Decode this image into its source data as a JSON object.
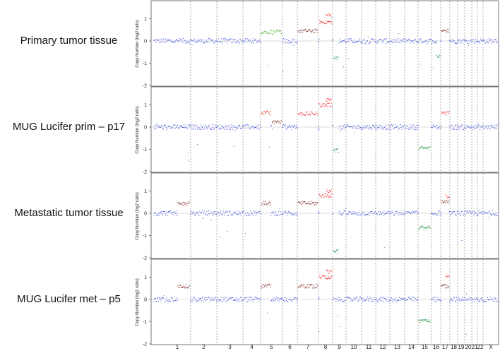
{
  "chart_data": {
    "type": "scatter",
    "y_axis_label": "Copy Number (log2 ratio)",
    "ylim": [
      -2,
      2
    ],
    "y_ticks": [
      "1",
      "0",
      "-1",
      "-2"
    ],
    "chromosomes": [
      "1",
      "2",
      "3",
      "4",
      "5",
      "6",
      "7",
      "8",
      "9",
      "10",
      "11",
      "12",
      "13",
      "14",
      "15",
      "16",
      "17",
      "18",
      "19",
      "20",
      "21",
      "22",
      "X"
    ],
    "x_tick_labels": [
      "1",
      "2",
      "3",
      "4",
      "5",
      "6",
      "7",
      "8",
      "9",
      "10",
      "11",
      "12",
      "13",
      "14",
      "15",
      "16",
      "17",
      "18",
      "19",
      "20",
      "21",
      "22",
      "X"
    ],
    "colors": {
      "normal": "#2233dd",
      "gain": "#ee2222",
      "gain_dark": "#7a1a1a",
      "low_gain": "#44aa22",
      "loss": "#118833",
      "reference": "#999999"
    },
    "panels": [
      {
        "label": "Primary tumor tissue",
        "segments": [
          {
            "chr": "5",
            "value": 0.4,
            "class": "low_gain"
          },
          {
            "chr": "7",
            "value": 0.45,
            "class": "gain_dark"
          },
          {
            "chr": "8",
            "value": 0.85,
            "class": "gain"
          },
          {
            "chr": "8q",
            "value": 1.15,
            "class": "gain"
          },
          {
            "chr": "9p",
            "value": -0.75,
            "class": "loss"
          },
          {
            "chr": "16q",
            "value": -0.7,
            "class": "loss"
          },
          {
            "chr": "17",
            "value": 0.45,
            "class": "gain_dark"
          }
        ]
      },
      {
        "label": "MUG Lucifer prim – p17",
        "segments": [
          {
            "chr": "5p",
            "value": 0.65,
            "class": "gain"
          },
          {
            "chr": "5q",
            "value": 0.25,
            "class": "gain_dark"
          },
          {
            "chr": "7",
            "value": 0.6,
            "class": "gain"
          },
          {
            "chr": "8",
            "value": 1.0,
            "class": "gain"
          },
          {
            "chr": "8q",
            "value": 1.25,
            "class": "gain"
          },
          {
            "chr": "9p",
            "value": -1.05,
            "class": "loss"
          },
          {
            "chr": "15",
            "value": -0.95,
            "class": "loss"
          },
          {
            "chr": "17",
            "value": 0.65,
            "class": "gain"
          }
        ]
      },
      {
        "label": "Metastatic tumor tissue",
        "segments": [
          {
            "chr": "1q",
            "value": 0.45,
            "class": "gain_dark"
          },
          {
            "chr": "5p",
            "value": 0.45,
            "class": "gain_dark"
          },
          {
            "chr": "7",
            "value": 0.45,
            "class": "gain_dark"
          },
          {
            "chr": "8",
            "value": 0.8,
            "class": "gain"
          },
          {
            "chr": "8q",
            "value": 1.0,
            "class": "gain"
          },
          {
            "chr": "9p",
            "value": -1.7,
            "class": "loss"
          },
          {
            "chr": "15",
            "value": -0.65,
            "class": "loss"
          },
          {
            "chr": "17",
            "value": 0.5,
            "class": "gain_dark"
          },
          {
            "chr": "17q",
            "value": 0.75,
            "class": "gain"
          }
        ]
      },
      {
        "label": "MUG Lucifer met – p5",
        "segments": [
          {
            "chr": "1q",
            "value": 0.6,
            "class": "gain_dark"
          },
          {
            "chr": "5p",
            "value": 0.6,
            "class": "gain_dark"
          },
          {
            "chr": "7",
            "value": 0.6,
            "class": "gain_dark"
          },
          {
            "chr": "8",
            "value": 1.0,
            "class": "gain"
          },
          {
            "chr": "8q",
            "value": 1.25,
            "class": "gain"
          },
          {
            "chr": "15",
            "value": -0.95,
            "class": "loss"
          },
          {
            "chr": "17",
            "value": 0.6,
            "class": "gain_dark"
          },
          {
            "chr": "17q",
            "value": 1.0,
            "class": "gain"
          }
        ]
      }
    ]
  }
}
